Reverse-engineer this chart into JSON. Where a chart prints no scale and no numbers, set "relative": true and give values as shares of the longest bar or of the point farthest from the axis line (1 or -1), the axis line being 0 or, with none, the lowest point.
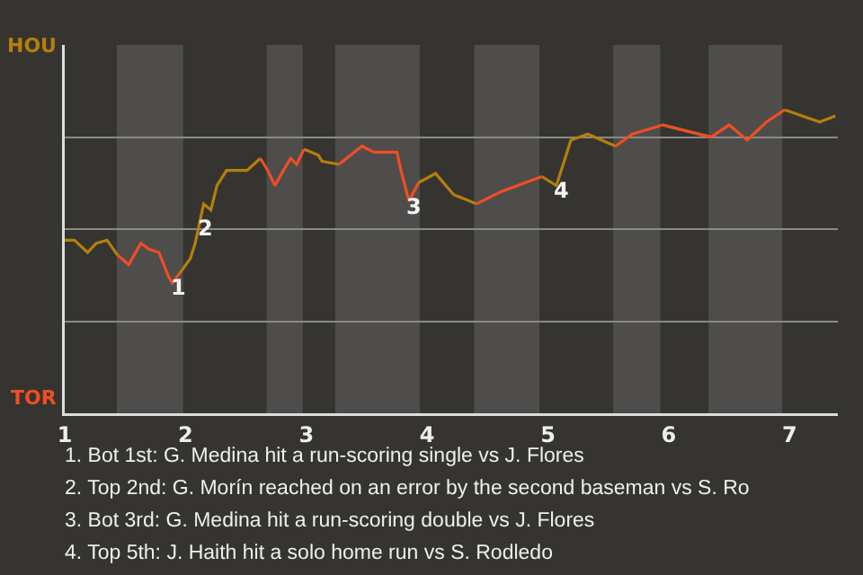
{
  "chart_data": {
    "type": "line",
    "x": [
      1.0,
      1.08,
      1.19,
      1.26,
      1.35,
      1.44,
      1.53,
      1.63,
      1.7,
      1.78,
      1.86,
      1.89,
      1.95,
      2.04,
      2.08,
      2.15,
      2.21,
      2.26,
      2.34,
      2.51,
      2.62,
      2.68,
      2.74,
      2.81,
      2.87,
      2.92,
      2.98,
      3.1,
      3.13,
      3.27,
      3.46,
      3.56,
      3.75,
      3.79,
      3.85,
      3.93,
      4.07,
      4.22,
      4.41,
      4.61,
      4.95,
      5.07,
      5.19,
      5.33,
      5.56,
      5.7,
      5.95,
      6.35,
      6.5,
      6.65,
      6.81,
      6.96,
      7.25,
      7.38
    ],
    "series": [
      {
        "name": "HOU",
        "color": "#b57f0c",
        "values": [
          0.57,
          0.57,
          0.53,
          0.56,
          0.57,
          0.52,
          null,
          null,
          null,
          null,
          null,
          null,
          0.46,
          0.51,
          0.56,
          0.69,
          0.67,
          0.75,
          0.8,
          0.8,
          0.84,
          null,
          null,
          null,
          null,
          null,
          0.87,
          0.85,
          0.83,
          0.82,
          null,
          null,
          null,
          null,
          null,
          0.76,
          0.79,
          0.72,
          0.69,
          null,
          0.78,
          0.75,
          0.9,
          0.92,
          0.88,
          null,
          0.95,
          0.91,
          null,
          null,
          null,
          1,
          0.96,
          0.98
        ]
      },
      {
        "name": "TOR",
        "color": "#f04e23",
        "values": [
          null,
          null,
          null,
          null,
          null,
          0.52,
          0.49,
          0.56,
          0.54,
          0.53,
          0.45,
          0.43,
          0.46,
          null,
          null,
          null,
          null,
          null,
          null,
          null,
          0.84,
          0.8,
          0.75,
          0.8,
          0.84,
          0.82,
          0.87,
          null,
          null,
          0.82,
          0.88,
          0.86,
          0.86,
          0.79,
          0.7,
          0.76,
          null,
          null,
          0.69,
          0.73,
          0.78,
          null,
          null,
          null,
          0.88,
          0.92,
          0.95,
          0.91,
          0.95,
          0.9,
          0.96,
          1,
          null,
          null
        ]
      }
    ],
    "relative": true,
    "xlim": [
      1,
      7.4
    ],
    "xticks": [
      1,
      2,
      3,
      4,
      5,
      6,
      7
    ],
    "grid": "y",
    "marker": "none",
    "line_style": "solid",
    "bands": [
      {
        "axis": "x",
        "from": 1.43,
        "to": 1.98,
        "color": "#4e4d4b"
      },
      {
        "axis": "x",
        "from": 2.67,
        "to": 2.97,
        "color": "#4e4d4b"
      },
      {
        "axis": "x",
        "from": 3.24,
        "to": 3.94,
        "color": "#4e4d4b"
      },
      {
        "axis": "x",
        "from": 4.39,
        "to": 4.93,
        "color": "#4e4d4b"
      },
      {
        "axis": "x",
        "from": 5.54,
        "to": 5.93,
        "color": "#4e4d4b"
      },
      {
        "axis": "x",
        "from": 6.33,
        "to": 6.94,
        "color": "#4e4d4b"
      }
    ],
    "annotations": [
      {
        "text": "1",
        "x": 1.89,
        "y": 0.43
      },
      {
        "text": "2",
        "x": 2.12,
        "y": 0.63
      },
      {
        "text": "3",
        "x": 3.85,
        "y": 0.7
      },
      {
        "text": "4",
        "x": 5.07,
        "y": 0.75
      },
      "1. Bot 1st: G. Medina hit a run-scoring single vs J. Flores",
      "2. Top 2nd: G. Morín reached on an error by the second baseman vs S. Ro",
      "3. Bot 3rd: G. Medina hit a run-scoring double vs J. Flores",
      "4. Top 5th: J. Haith hit a solo home run vs S. Rodledo"
    ]
  }
}
